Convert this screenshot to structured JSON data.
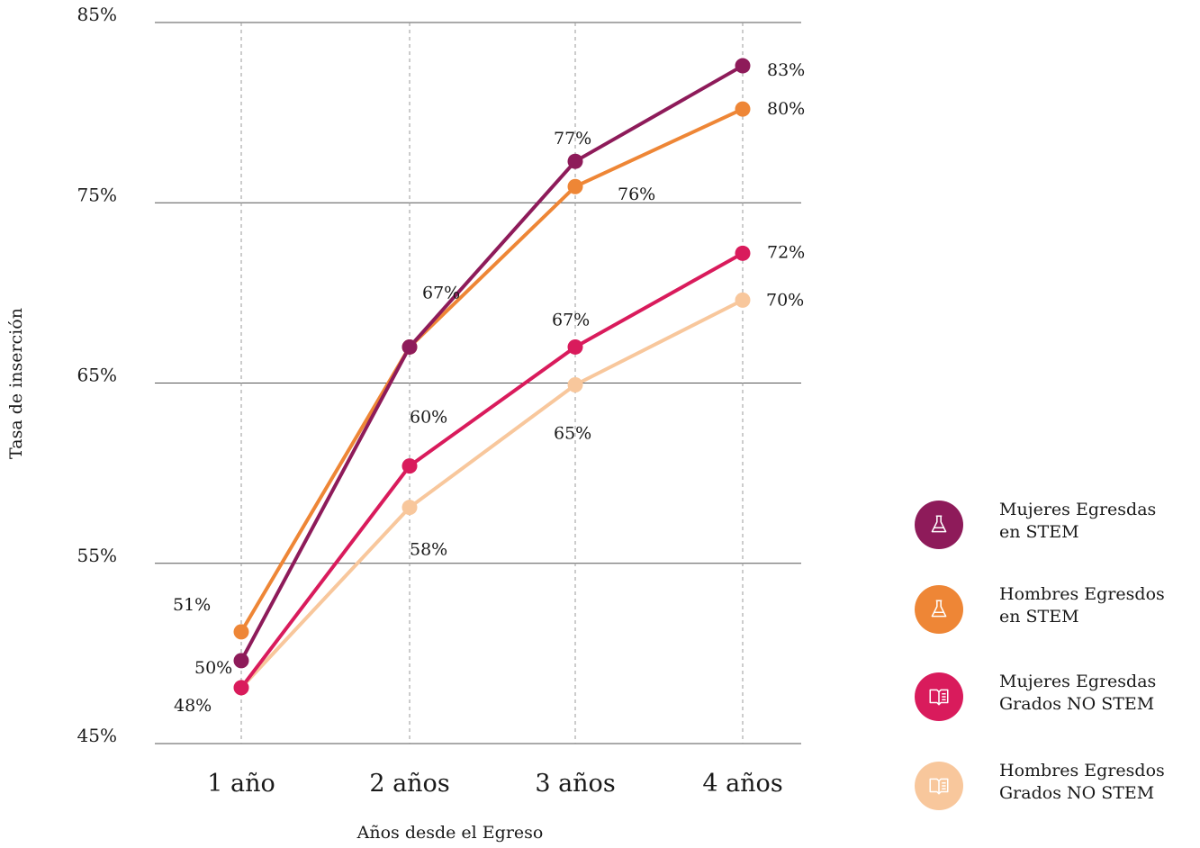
{
  "chart_data": {
    "type": "line",
    "categories": [
      "1 año",
      "2 años",
      "3 años",
      "4 años"
    ],
    "ylim": [
      45,
      85
    ],
    "yticks": [
      "45%",
      "55%",
      "65%",
      "75%",
      "85%"
    ],
    "ytick_values": [
      45,
      55,
      65,
      75,
      85
    ],
    "xlabel": "Años desde el Egreso",
    "ylabel": "Tasa de inserción",
    "grid": true,
    "legend_position": "right",
    "series": [
      {
        "name_line1": "Mujeres Egresdas",
        "name_line2": "en STEM",
        "color": "#8e1b5a",
        "icon": "flask-icon",
        "values": [
          49.6,
          67,
          77.3,
          82.6
        ],
        "labels": [
          "50%",
          "67%",
          "77%",
          "83%"
        ]
      },
      {
        "name_line1": "Hombres Egresdos",
        "name_line2": "en STEM",
        "color": "#ee8636",
        "icon": "flask-icon",
        "values": [
          51.2,
          67,
          75.9,
          80.2
        ],
        "labels": [
          "51%",
          "",
          "76%",
          "80%"
        ]
      },
      {
        "name_line1": "Mujeres Egresdas",
        "name_line2": "Grados NO STEM",
        "color": "#d91b5c",
        "icon": "book-icon",
        "values": [
          48.1,
          60.4,
          67,
          72.2
        ],
        "labels": [
          "48%",
          "60%",
          "67%",
          "72%"
        ]
      },
      {
        "name_line1": "Hombres Egresdos",
        "name_line2": "Grados NO STEM",
        "color": "#f8c79c",
        "icon": "book-icon",
        "values": [
          48.1,
          58.1,
          64.9,
          69.6
        ],
        "labels": [
          "",
          "58%",
          "65%",
          "70%"
        ]
      }
    ]
  }
}
